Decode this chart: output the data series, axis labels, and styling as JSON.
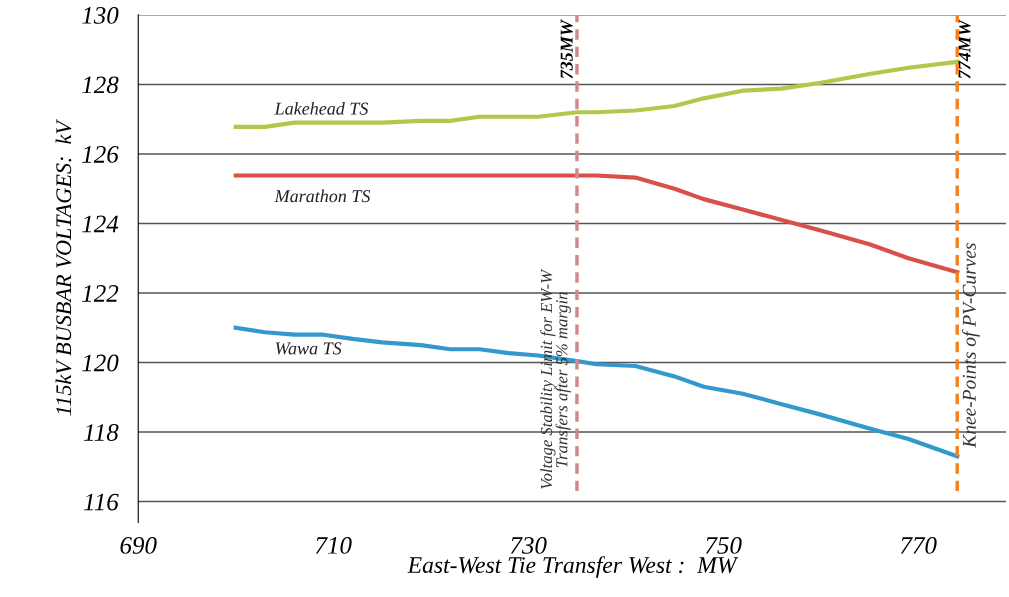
{
  "chart_data": {
    "type": "line",
    "xlabel": "East-West Tie Transfer West :  MW",
    "ylabel": "115kV BUSBAR VOLTAGES:  kV",
    "x": [
      700,
      703,
      706,
      709,
      712,
      715,
      719,
      722,
      725,
      728,
      731,
      735,
      737,
      741,
      745,
      748,
      752,
      756,
      760,
      765,
      769,
      774
    ],
    "series": [
      {
        "name": "Lakehead TS",
        "color": "#b5c64c",
        "values": [
          126.78,
          126.78,
          126.9,
          126.9,
          126.9,
          126.9,
          126.95,
          126.95,
          127.07,
          127.07,
          127.07,
          127.2,
          127.2,
          127.25,
          127.38,
          127.6,
          127.82,
          127.88,
          128.05,
          128.3,
          128.48,
          128.65
        ]
      },
      {
        "name": "Marathon TS",
        "color": "#d9504a",
        "values": [
          125.38,
          125.38,
          125.38,
          125.38,
          125.38,
          125.38,
          125.38,
          125.38,
          125.38,
          125.38,
          125.38,
          125.38,
          125.38,
          125.32,
          125.0,
          124.7,
          124.4,
          124.1,
          123.8,
          123.4,
          123.0,
          122.6
        ]
      },
      {
        "name": "Wawa TS",
        "color": "#3399cc",
        "values": [
          121.0,
          120.87,
          120.8,
          120.8,
          120.68,
          120.58,
          120.5,
          120.38,
          120.38,
          120.27,
          120.2,
          120.04,
          119.95,
          119.9,
          119.6,
          119.3,
          119.1,
          118.8,
          118.5,
          118.1,
          117.8,
          117.3
        ]
      }
    ],
    "xlim": [
      690,
      779
    ],
    "xticks": [
      690,
      710,
      730,
      750,
      770
    ],
    "ylim": [
      115.4,
      130
    ],
    "yticks": [
      116,
      118,
      120,
      122,
      124,
      126,
      128,
      130
    ],
    "grid": "y",
    "legend": false,
    "marker": "none",
    "line_style": "solid",
    "ref_lines": [
      {
        "axis": "x",
        "value": 735,
        "label": "735MW",
        "color": "#d08a8e",
        "line_style": "dashed"
      },
      {
        "axis": "x",
        "value": 774,
        "label": "774MW",
        "color": "#f5821f",
        "line_style": "dashed"
      }
    ],
    "annotations": [
      {
        "text": "Voltage Stability Limit for EW-W\nTransfers after 5% margin",
        "x": 735,
        "y": 119.5
      },
      {
        "text": "Knee-Points of PV-Curves",
        "x": 774,
        "y": 120.5
      }
    ]
  }
}
